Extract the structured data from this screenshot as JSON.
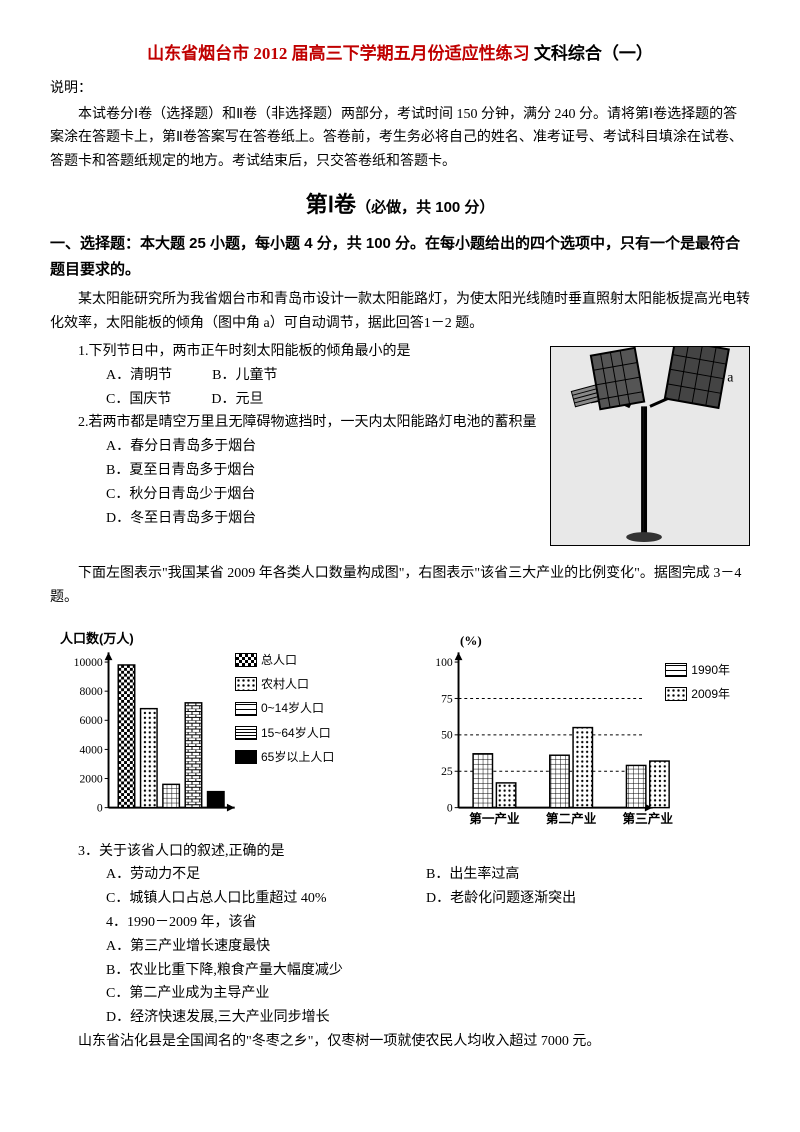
{
  "title": {
    "red_part": "山东省烟台市 2012 届高三下学期五月份适应性练习",
    "black_part": " 文科综合（一）"
  },
  "explain_label": "说明：",
  "explain_text": "本试卷分Ⅰ卷（选择题）和Ⅱ卷（非选择题）两部分，考试时间 150 分钟，满分 240 分。请将第Ⅰ卷选择题的答案涂在答题卡上，第Ⅱ卷答案写在答卷纸上。答卷前，考生务必将自己的姓名、准考证号、考试科目填涂在试卷、答题卡和答题纸规定的地方。考试结束后，只交答卷纸和答题卡。",
  "section1_title": "第Ⅰ卷",
  "section1_sub": "（必做，共 100 分）",
  "heading_choice": "一、选择题：本大题 25 小题，每小题 4 分，共 100 分。在每小题给出的四个选项中，只有一个是最符合题目要求的。",
  "intro_q12": "某太阳能研究所为我省烟台市和青岛市设计一款太阳能路灯，为使太阳光线随时垂直照射太阳能板提高光电转化效率，太阳能板的倾角（图中角 a）可自动调节，据此回答1－2 题。",
  "q1": {
    "text": "1.下列节日中，两市正午时刻太阳能板的倾角最小的是",
    "A": "A．清明节",
    "B": "B．儿童节",
    "C": "C．国庆节",
    "D": "D．元旦"
  },
  "q2": {
    "text": "2.若两市都是晴空万里且无障碍物遮挡时，一天内太阳能路灯电池的蓄积量",
    "A": "A．春分日青岛多于烟台",
    "B": "B．夏至日青岛多于烟台",
    "C": "C．秋分日青岛少于烟台",
    "D": "D．冬至日青岛多于烟台"
  },
  "intro_q34": "下面左图表示\"我国某省 2009 年各类人口数量构成图\"，右图表示\"该省三大产业的比例变化\"。据图完成 3－4 题。",
  "chart_left": {
    "y_label": "人口数(万人)",
    "y_ticks": [
      "10000",
      "8000",
      "6000",
      "4000",
      "2000",
      "0"
    ],
    "ylim": [
      0,
      10000
    ],
    "legend": [
      {
        "label": "总人口",
        "pattern": "checker"
      },
      {
        "label": "农村人口",
        "pattern": "dots"
      },
      {
        "label": "0~14岁人口",
        "pattern": "grid"
      },
      {
        "label": "15~64岁人口",
        "pattern": "bricks"
      },
      {
        "label": "65岁以上人口",
        "pattern": "solid"
      }
    ],
    "values": [
      9800,
      6800,
      1600,
      7200,
      1100
    ]
  },
  "chart_right": {
    "y_label": "(%)",
    "y_ticks": [
      "100",
      "75",
      "50",
      "25",
      "0"
    ],
    "ylim": [
      0,
      100
    ],
    "x_labels": [
      "第一产业",
      "第二产业",
      "第三产业"
    ],
    "legend": [
      {
        "label": "1990年",
        "color": "grid"
      },
      {
        "label": "2009年",
        "color": "dots"
      }
    ],
    "series_1990": [
      37,
      36,
      29
    ],
    "series_2009": [
      17,
      55,
      32
    ]
  },
  "q3": {
    "text": "3．关于该省人口的叙述,正确的是",
    "A": "A．劳动力不足",
    "B": "B．出生率过高",
    "C": "C．城镇人口占总人口比重超过 40%",
    "D": "D．老龄化问题逐渐突出"
  },
  "q4": {
    "text": "4．1990－2009 年，该省",
    "A": "A．第三产业增长速度最快",
    "B": "B．农业比重下降,粮食产量大幅度减少",
    "C": "C．第二产业成为主导产业",
    "D": "D．经济快速发展,三大产业同步增长"
  },
  "last_para": "山东省沾化县是全国闻名的\"冬枣之乡\"，仅枣树一项就使农民人均收入超过 7000 元。"
}
